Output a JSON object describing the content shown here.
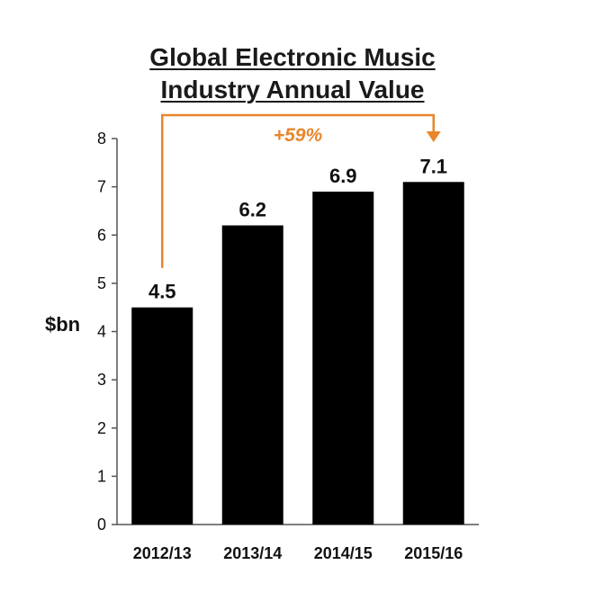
{
  "chart_data": {
    "type": "bar",
    "title_line1": "Global Electronic Music",
    "title_line2": "Industry Annual Value",
    "ylabel": "$bn",
    "xlabel": "",
    "categories": [
      "2012/13",
      "2013/14",
      "2014/15",
      "2015/16"
    ],
    "values": [
      4.5,
      6.2,
      6.9,
      7.1
    ],
    "value_labels": [
      "4.5",
      "6.2",
      "6.9",
      "7.1"
    ],
    "ylim": [
      0,
      8
    ],
    "yticks": [
      "0",
      "1",
      "2",
      "3",
      "4",
      "5",
      "6",
      "7",
      "8"
    ],
    "grid": false,
    "bar_color": "#000000",
    "annotation": {
      "text": "+59%",
      "from_category": "2012/13",
      "to_category": "2015/16",
      "color": "#e8862a"
    }
  }
}
